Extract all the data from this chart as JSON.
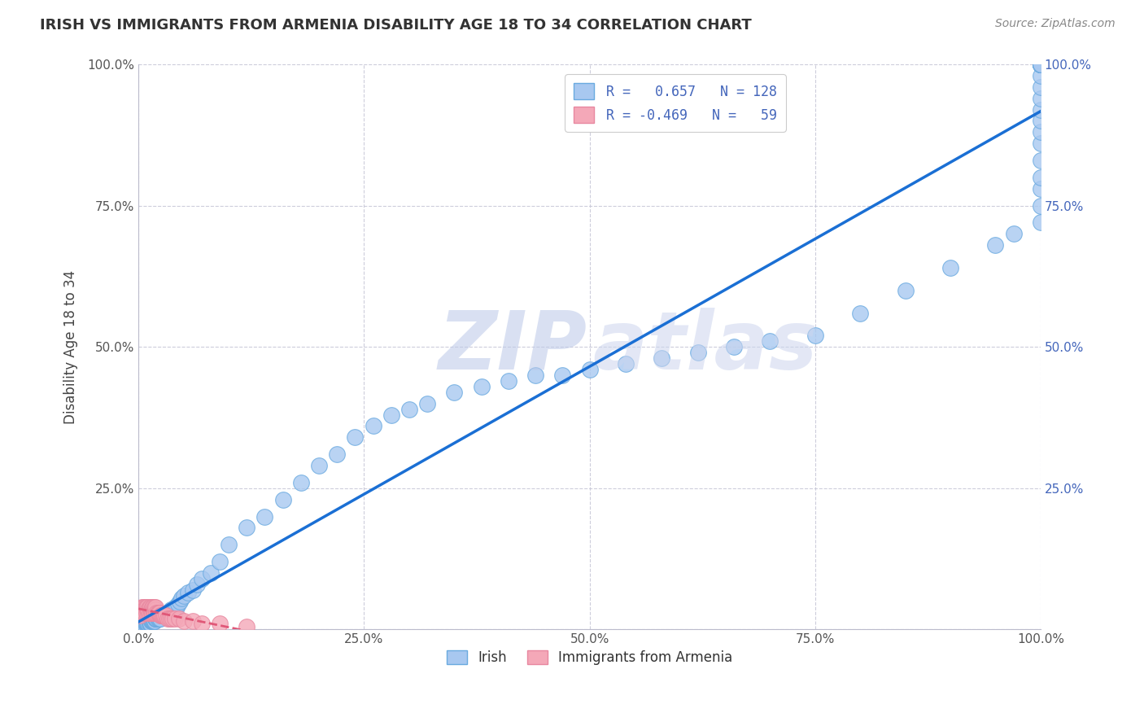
{
  "title": "IRISH VS IMMIGRANTS FROM ARMENIA DISABILITY AGE 18 TO 34 CORRELATION CHART",
  "source": "Source: ZipAtlas.com",
  "ylabel": "Disability Age 18 to 34",
  "r_irish": 0.657,
  "n_irish": 128,
  "r_armenia": -0.469,
  "n_armenia": 59,
  "irish_color": "#a8c8f0",
  "armenia_color": "#f4a8b8",
  "irish_edge_color": "#6aaae0",
  "armenia_edge_color": "#e888a0",
  "irish_line_color": "#1a6fd4",
  "armenia_line_color": "#e05878",
  "background_color": "#ffffff",
  "grid_color": "#c8c8d8",
  "xlim": [
    0.0,
    1.0
  ],
  "ylim": [
    0.0,
    1.0
  ],
  "xticks": [
    0.0,
    0.25,
    0.5,
    0.75,
    1.0
  ],
  "yticks": [
    0.0,
    0.25,
    0.5,
    0.75,
    1.0
  ],
  "xticklabels": [
    "0.0%",
    "25.0%",
    "50.0%",
    "75.0%",
    "100.0%"
  ],
  "yticklabels": [
    "",
    "25.0%",
    "50.0%",
    "75.0%",
    "100.0%"
  ],
  "right_yticklabels": [
    "",
    "25.0%",
    "50.0%",
    "75.0%",
    "100.0%"
  ],
  "irish_x": [
    0.001,
    0.002,
    0.003,
    0.003,
    0.004,
    0.004,
    0.005,
    0.005,
    0.006,
    0.006,
    0.007,
    0.007,
    0.008,
    0.008,
    0.009,
    0.009,
    0.01,
    0.01,
    0.011,
    0.011,
    0.012,
    0.012,
    0.013,
    0.013,
    0.014,
    0.014,
    0.015,
    0.015,
    0.016,
    0.016,
    0.017,
    0.017,
    0.018,
    0.018,
    0.019,
    0.019,
    0.02,
    0.02,
    0.021,
    0.022,
    0.023,
    0.024,
    0.025,
    0.026,
    0.027,
    0.028,
    0.029,
    0.03,
    0.031,
    0.032,
    0.033,
    0.034,
    0.035,
    0.036,
    0.037,
    0.038,
    0.04,
    0.042,
    0.044,
    0.046,
    0.048,
    0.05,
    0.055,
    0.06,
    0.065,
    0.07,
    0.08,
    0.09,
    0.1,
    0.12,
    0.14,
    0.16,
    0.18,
    0.2,
    0.22,
    0.24,
    0.26,
    0.28,
    0.3,
    0.32,
    0.35,
    0.38,
    0.41,
    0.44,
    0.47,
    0.5,
    0.54,
    0.58,
    0.62,
    0.66,
    0.7,
    0.75,
    0.8,
    0.85,
    0.9,
    0.95,
    0.97,
    1.0,
    1.0,
    1.0,
    1.0,
    1.0,
    1.0,
    1.0,
    1.0,
    1.0,
    1.0,
    1.0,
    1.0,
    1.0,
    1.0,
    1.0,
    1.0,
    1.0,
    1.0,
    1.0,
    1.0,
    1.0,
    1.0,
    1.0,
    1.0,
    1.0,
    1.0,
    1.0,
    1.0,
    1.0,
    1.0,
    1.0
  ],
  "irish_y": [
    0.005,
    0.005,
    0.005,
    0.005,
    0.005,
    0.005,
    0.005,
    0.005,
    0.005,
    0.005,
    0.005,
    0.005,
    0.005,
    0.01,
    0.01,
    0.01,
    0.01,
    0.01,
    0.01,
    0.01,
    0.01,
    0.01,
    0.01,
    0.01,
    0.015,
    0.015,
    0.015,
    0.015,
    0.015,
    0.015,
    0.015,
    0.015,
    0.015,
    0.015,
    0.02,
    0.02,
    0.02,
    0.02,
    0.02,
    0.02,
    0.02,
    0.02,
    0.025,
    0.025,
    0.025,
    0.025,
    0.025,
    0.025,
    0.03,
    0.03,
    0.03,
    0.03,
    0.03,
    0.035,
    0.035,
    0.035,
    0.04,
    0.04,
    0.045,
    0.05,
    0.055,
    0.06,
    0.065,
    0.07,
    0.08,
    0.09,
    0.1,
    0.12,
    0.15,
    0.18,
    0.2,
    0.23,
    0.26,
    0.29,
    0.31,
    0.34,
    0.36,
    0.38,
    0.39,
    0.4,
    0.42,
    0.43,
    0.44,
    0.45,
    0.45,
    0.46,
    0.47,
    0.48,
    0.49,
    0.5,
    0.51,
    0.52,
    0.56,
    0.6,
    0.64,
    0.68,
    0.7,
    0.72,
    0.75,
    0.78,
    0.8,
    0.83,
    0.86,
    0.88,
    0.9,
    0.92,
    0.94,
    0.96,
    0.98,
    1.0,
    1.0,
    1.0,
    1.0,
    1.0,
    1.0,
    1.0,
    1.0,
    1.0,
    1.0,
    1.0,
    1.0,
    1.0,
    1.0,
    1.0,
    1.0,
    1.0,
    1.0,
    1.0
  ],
  "armenia_x": [
    0.001,
    0.002,
    0.002,
    0.003,
    0.003,
    0.004,
    0.004,
    0.005,
    0.005,
    0.006,
    0.006,
    0.007,
    0.007,
    0.008,
    0.008,
    0.009,
    0.009,
    0.01,
    0.01,
    0.011,
    0.011,
    0.012,
    0.012,
    0.013,
    0.013,
    0.014,
    0.014,
    0.015,
    0.015,
    0.016,
    0.016,
    0.017,
    0.017,
    0.018,
    0.018,
    0.019,
    0.019,
    0.02,
    0.021,
    0.022,
    0.023,
    0.024,
    0.025,
    0.026,
    0.027,
    0.028,
    0.029,
    0.03,
    0.032,
    0.034,
    0.036,
    0.038,
    0.04,
    0.045,
    0.05,
    0.06,
    0.07,
    0.09,
    0.12
  ],
  "armenia_y": [
    0.03,
    0.025,
    0.035,
    0.03,
    0.04,
    0.035,
    0.03,
    0.04,
    0.035,
    0.03,
    0.04,
    0.035,
    0.03,
    0.04,
    0.035,
    0.04,
    0.03,
    0.035,
    0.04,
    0.03,
    0.035,
    0.04,
    0.03,
    0.035,
    0.04,
    0.03,
    0.035,
    0.04,
    0.03,
    0.035,
    0.04,
    0.03,
    0.035,
    0.04,
    0.03,
    0.035,
    0.04,
    0.03,
    0.03,
    0.03,
    0.03,
    0.025,
    0.025,
    0.025,
    0.025,
    0.025,
    0.025,
    0.025,
    0.02,
    0.02,
    0.02,
    0.02,
    0.02,
    0.02,
    0.015,
    0.015,
    0.01,
    0.01,
    0.005
  ],
  "legend_text1": "R =   0.657   N = 128",
  "legend_text2": "R = -0.469   N =   59",
  "legend_label1": "Irish",
  "legend_label2": "Immigrants from Armenia",
  "title_color": "#333333",
  "source_color": "#888888",
  "tick_color": "#555555",
  "right_tick_color": "#4466bb"
}
